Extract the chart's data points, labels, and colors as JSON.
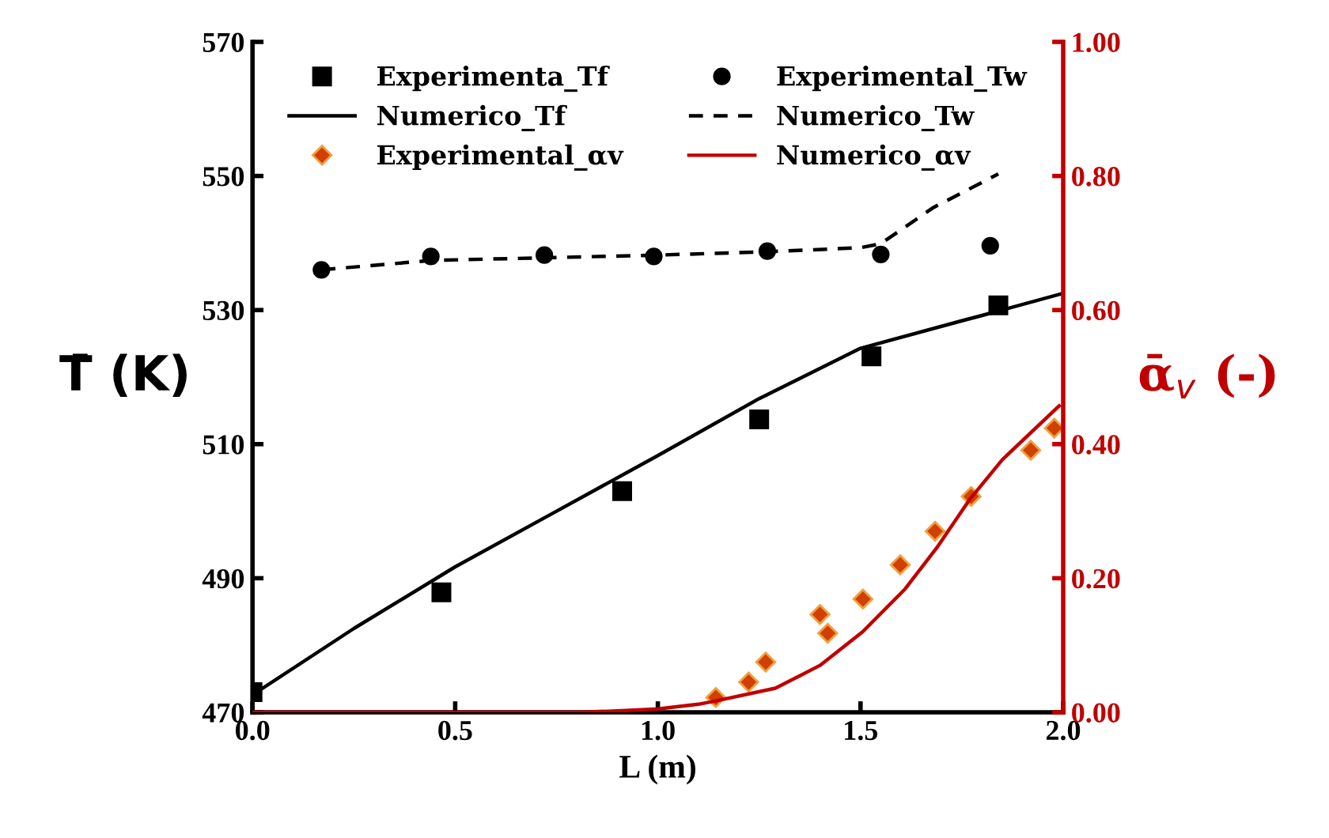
{
  "chart_data": {
    "type": "scatter",
    "xlabel": "L (m)",
    "ylabel": "T̄ (K)",
    "y2label": "ᾱ$_{v}$ (-)",
    "xlim": [
      0,
      2
    ],
    "xticks": [
      {
        "value": 0,
        "label": "0.0"
      },
      {
        "value": 0.5,
        "label": "0.5"
      },
      {
        "value": 1,
        "label": "1.0"
      },
      {
        "value": 1.5,
        "label": "1.5"
      },
      {
        "value": 2,
        "label": "2.0"
      }
    ],
    "ylim": [
      470,
      570
    ],
    "yticks": [
      470,
      490,
      510,
      530,
      550,
      570
    ],
    "y2lim": [
      0,
      1
    ],
    "y2ticks": [
      {
        "value": 0,
        "label": "0.00"
      },
      {
        "value": 0.2,
        "label": "0.20"
      },
      {
        "value": 0.4,
        "label": "0.40"
      },
      {
        "value": 0.6,
        "label": "0.60"
      },
      {
        "value": 0.8,
        "label": "0.80"
      },
      {
        "value": 1,
        "label": "1.00"
      }
    ],
    "grid": false,
    "legend": "top",
    "series": [
      {
        "name": "Experimenta_Tf",
        "marker": "square",
        "color": "#000000",
        "x": [
          0,
          0.466,
          0.912,
          1.25,
          1.527,
          1.84
        ],
        "values": [
          473,
          487.9,
          503,
          513.7,
          523.1,
          530.7
        ]
      },
      {
        "name": "Experimental_Tw",
        "marker": "circle",
        "color": "#000000",
        "x": [
          0.17,
          0.44,
          0.72,
          0.99,
          1.27,
          1.55,
          1.82
        ],
        "values": [
          536,
          538,
          538.2,
          538,
          538.8,
          538.3,
          539.6
        ]
      },
      {
        "name": "Numerico_Tf",
        "type": "line",
        "line_style": "solid",
        "color": "#000000",
        "x": [
          0,
          0.25,
          0.5,
          0.75,
          1,
          1.25,
          1.5,
          1.75,
          1.8,
          2
        ],
        "values": [
          472.6,
          482.5,
          491.7,
          500,
          508.3,
          516.8,
          524.3,
          528.4,
          529.2,
          532.5
        ]
      },
      {
        "name": "Numerico_Tw",
        "type": "line",
        "line_style": "dashed",
        "color": "#000000",
        "x": [
          0.17,
          0.44,
          0.72,
          1,
          1.27,
          1.5,
          1.55,
          1.68,
          1.84
        ],
        "values": [
          536,
          537.4,
          537.8,
          538.2,
          538.7,
          539.3,
          539.9,
          545.3,
          550.3
        ]
      },
      {
        "name": "Experimental_αv",
        "marker": "diamond",
        "axis": "y2",
        "color": "#d04000",
        "x": [
          1.143,
          1.224,
          1.266,
          1.4,
          1.419,
          1.506,
          1.598,
          1.684,
          1.773,
          1.92,
          1.978
        ],
        "values": [
          0.022,
          0.045,
          0.075,
          0.146,
          0.118,
          0.169,
          0.22,
          0.27,
          0.322,
          0.391,
          0.424
        ]
      },
      {
        "name": "Numerico_αv",
        "type": "line",
        "line_style": "solid",
        "axis": "y2",
        "color": "#c00000",
        "x": [
          0,
          0.5,
          0.8,
          0.9,
          1,
          1.1,
          1.143,
          1.29,
          1.4,
          1.505,
          1.61,
          1.69,
          1.77,
          1.85,
          1.99
        ],
        "values": [
          0,
          0,
          0,
          0.002,
          0.005,
          0.012,
          0.017,
          0.036,
          0.07,
          0.12,
          0.184,
          0.247,
          0.318,
          0.377,
          0.457
        ]
      }
    ]
  }
}
